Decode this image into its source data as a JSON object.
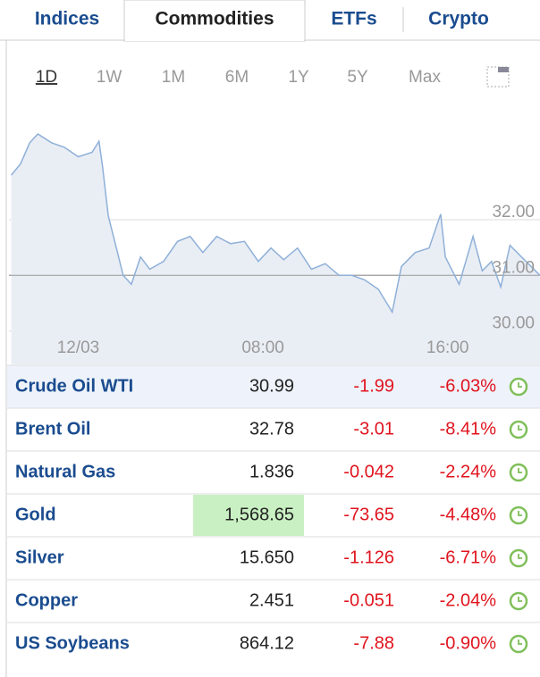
{
  "tabs": [
    "Indices",
    "Commodities",
    "ETFs",
    "Crypto"
  ],
  "periods": [
    "1D",
    "1W",
    "1M",
    "6M",
    "1Y",
    "5Y",
    "Max"
  ],
  "chart_data": {
    "type": "line",
    "color": "#8fb0d8",
    "x": [
      -2.9,
      -2.5,
      -2.1,
      -1.75,
      -1.15,
      -0.6,
      0,
      0.6,
      0.9,
      1.05,
      1.3,
      1.55,
      1.95,
      2.3,
      2.7,
      3.1,
      3.7,
      4.3,
      4.85,
      5.4,
      6.0,
      6.6,
      7.2,
      7.8,
      8.35,
      8.9,
      9.5,
      10.1,
      10.7,
      11.3,
      11.85,
      12.4,
      13.0,
      13.6,
      14.0,
      14.6,
      15.2,
      15.7,
      15.9,
      16.5,
      17.1,
      17.5,
      17.9,
      18.3,
      18.7,
      19.2,
      20.0
    ],
    "values": [
      32.8,
      33.0,
      33.38,
      33.54,
      33.38,
      33.3,
      33.13,
      33.21,
      33.41,
      32.97,
      32.07,
      31.66,
      31.0,
      30.84,
      31.33,
      31.11,
      31.25,
      31.61,
      31.7,
      31.41,
      31.7,
      31.57,
      31.61,
      31.25,
      31.49,
      31.28,
      31.49,
      31.11,
      31.21,
      31.0,
      31.0,
      30.92,
      30.75,
      30.34,
      31.16,
      31.41,
      31.49,
      32.1,
      31.33,
      30.84,
      31.7,
      31.08,
      31.25,
      30.79,
      31.54,
      31.33,
      31.0
    ],
    "xlim": [
      -3,
      20
    ],
    "ylim": [
      29.4,
      33.7
    ],
    "xticks": [
      {
        "value": 0,
        "label": "12/03"
      },
      {
        "value": 8,
        "label": "08:00"
      },
      {
        "value": 16,
        "label": "16:00"
      }
    ],
    "yticks": [
      {
        "value": 30,
        "label": "30.00"
      },
      {
        "value": 31,
        "label": "31.00"
      },
      {
        "value": 32,
        "label": "32.00"
      }
    ]
  },
  "table": {
    "rows": [
      [
        "Crude Oil WTI",
        "30.99",
        "-1.99",
        "-6.03%"
      ],
      [
        "Brent Oil",
        "32.78",
        "-3.01",
        "-8.41%"
      ],
      [
        "Natural Gas",
        "1.836",
        "-0.042",
        "-2.24%"
      ],
      [
        "Gold",
        "1,568.65",
        "-73.65",
        "-4.48%"
      ],
      [
        "Silver",
        "15.650",
        "-1.126",
        "-6.71%"
      ],
      [
        "Copper",
        "2.451",
        "-0.051",
        "-2.04%"
      ],
      [
        "US Soybeans",
        "864.12",
        "-7.88",
        "-0.90%"
      ]
    ]
  }
}
